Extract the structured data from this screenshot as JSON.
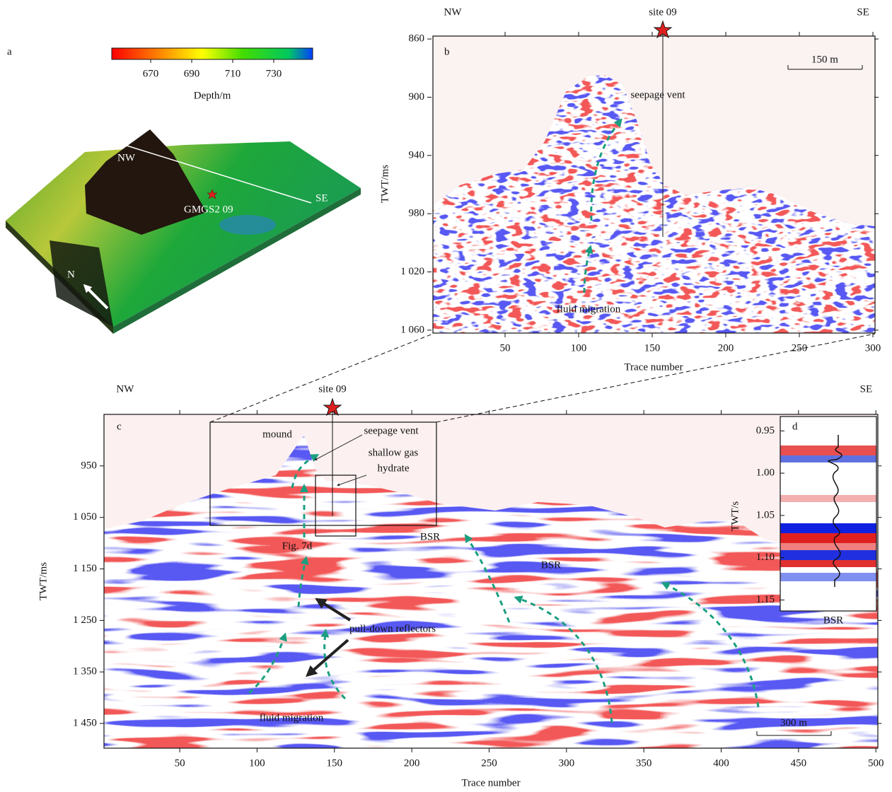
{
  "panels": {
    "a": {
      "label": "a",
      "colorbar": {
        "title": "Depth/m",
        "clim": [
          651,
          749
        ],
        "ticks": [
          670,
          690,
          710,
          730
        ]
      },
      "labels": {
        "nw": "NW",
        "se": "SE",
        "site": "GMGS2 09",
        "north": "N"
      }
    },
    "b": {
      "label": "b",
      "x_label": "Trace number",
      "y_label": "TWT/ms",
      "xlim": [
        0,
        301
      ],
      "ylim": [
        858,
        1062
      ],
      "xticks": [
        50,
        100,
        150,
        200,
        250,
        300
      ],
      "yticks": [
        860,
        900,
        940,
        980,
        {
          "value": 1020,
          "label": "1 020"
        },
        {
          "value": 1060,
          "label": "1 060"
        }
      ],
      "top_labels": {
        "left": "NW",
        "site": "site 09",
        "right": "SE"
      },
      "annotations": {
        "scale": "150 m",
        "vent": "seepage vent",
        "migration": "fluid migration"
      }
    },
    "c": {
      "label": "c",
      "x_label": "Trace number",
      "y_label": "TWT/ms",
      "xlim": [
        1,
        501
      ],
      "ylim": [
        850,
        1498
      ],
      "xticks": [
        50,
        100,
        150,
        200,
        250,
        300,
        350,
        400,
        450,
        500
      ],
      "yticks": [
        950,
        {
          "value": 1050,
          "label": "1 050"
        },
        {
          "value": 1150,
          "label": "1 150"
        },
        {
          "value": 1250,
          "label": "1 250"
        },
        {
          "value": 1350,
          "label": "1 350"
        },
        {
          "value": 1450,
          "label": "1 450"
        }
      ],
      "top_labels": {
        "left": "NW",
        "site": "site 09",
        "right": "SE"
      },
      "annotations": {
        "mound": "mound",
        "vent": "seepage vent",
        "gas1": "shallow gas",
        "gas2": "hydrate",
        "fig": "Fig. 7d",
        "bsr1": "BSR",
        "bsr2": "BSR",
        "bsr3": "BSR",
        "pull": "pull-down reflectors",
        "migration": "fluid migration",
        "scale": "300 m"
      }
    },
    "d": {
      "label": "d",
      "y_label": "TWT/s",
      "ylim": [
        0.933,
        1.163
      ],
      "yticks": [
        0.95,
        {
          "value": 1,
          "label": "1.00"
        },
        1.05,
        {
          "value": 1.1,
          "label": "1.10"
        },
        1.15
      ]
    }
  }
}
